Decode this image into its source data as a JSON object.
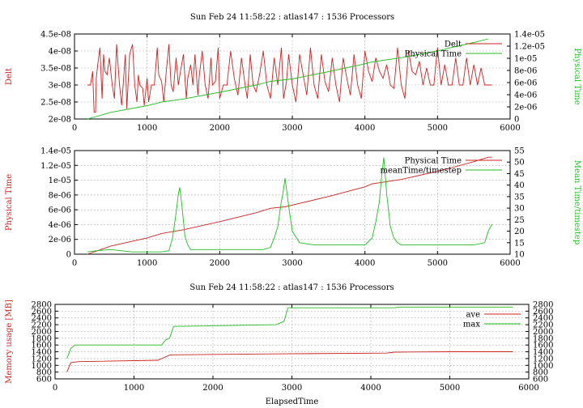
{
  "colors": {
    "red": "#cc2222",
    "green": "#22bb22"
  },
  "chart_data": [
    {
      "type": "line",
      "title": "Sun Feb 24 11:58:22 : atlas147 : 1536 Processors",
      "xlabel": "",
      "ylabel": "Delt",
      "y2label": "Physical Time",
      "xlim": [
        0,
        6000
      ],
      "ylim": [
        2e-08,
        4.5e-08
      ],
      "y2lim": [
        0,
        1.4e-05
      ],
      "xticks": [
        "0",
        "1000",
        "2000",
        "3000",
        "4000",
        "5000",
        "6000"
      ],
      "yticks": [
        "2e-08",
        "2.5e-08",
        "3e-08",
        "3.5e-08",
        "4e-08",
        "4.5e-08"
      ],
      "y2ticks": [
        "0",
        "2e-06",
        "4e-06",
        "6e-06",
        "8e-06",
        "1e-05",
        "1.2e-05",
        "1.4e-05"
      ],
      "legend_position": "top-right",
      "grid": true,
      "series": [
        {
          "name": "Delt",
          "axis": "y",
          "color": "#cc2222",
          "x": [
            180,
            220,
            250,
            270,
            290,
            300,
            320,
            350,
            380,
            400,
            420,
            450,
            480,
            520,
            550,
            580,
            620,
            650,
            700,
            720,
            760,
            800,
            830,
            860,
            880,
            900,
            940,
            960,
            1000,
            1020,
            1060,
            1100,
            1140,
            1160,
            1200,
            1230,
            1260,
            1300,
            1330,
            1360,
            1400,
            1430,
            1460,
            1500,
            1540,
            1560,
            1600,
            1630,
            1660,
            1700,
            1720,
            1760,
            1800,
            1840,
            1880,
            1900,
            1940,
            1980,
            2000,
            2050,
            2100,
            2150,
            2200,
            2250,
            2300,
            2350,
            2380,
            2420,
            2460,
            2500,
            2550,
            2600,
            2650,
            2700,
            2750,
            2800,
            2850,
            2880,
            2920,
            2950,
            3000,
            3050,
            3100,
            3150,
            3200,
            3250,
            3300,
            3350,
            3400,
            3450,
            3500,
            3550,
            3600,
            3650,
            3700,
            3750,
            3800,
            3850,
            3900,
            3950,
            4000,
            4050,
            4100,
            4150,
            4200,
            4250,
            4300,
            4350,
            4400,
            4450,
            4500,
            4550,
            4600,
            4650,
            4700,
            4750,
            4800,
            4850,
            4900,
            4950,
            5000,
            5050,
            5100,
            5150,
            5200,
            5250,
            5300,
            5350,
            5400,
            5450,
            5500,
            5550,
            5600,
            5650,
            5700,
            5750
          ],
          "y": [
            3e-08,
            3e-08,
            3.4e-08,
            2.2e-08,
            2.2e-08,
            3.2e-08,
            3.6e-08,
            4.1e-08,
            2.6e-08,
            3.9e-08,
            3.4e-08,
            3.3e-08,
            3.8e-08,
            3e-08,
            2.6e-08,
            4.2e-08,
            3e-08,
            2.4e-08,
            3.9e-08,
            2.3e-08,
            3.9e-08,
            4.2e-08,
            3e-08,
            2.5e-08,
            3.3e-08,
            3e-08,
            2.9e-08,
            2.4e-08,
            3.2e-08,
            2.5e-08,
            3e-08,
            3e-08,
            4.1e-08,
            3.3e-08,
            3.1e-08,
            2.5e-08,
            3.3e-08,
            4.2e-08,
            3e-08,
            2.8e-08,
            3.8e-08,
            3e-08,
            3.4e-08,
            3.9e-08,
            2.6e-08,
            3.2e-08,
            3.6e-08,
            3e-08,
            3.9e-08,
            2.7e-08,
            3.3e-08,
            4e-08,
            3e-08,
            2.6e-08,
            3.8e-08,
            3e-08,
            3.1e-08,
            4.1e-08,
            2.6e-08,
            3e-08,
            3e-08,
            4e-08,
            3.2e-08,
            2.7e-08,
            3.8e-08,
            3e-08,
            2.6e-08,
            3.9e-08,
            3e-08,
            2.8e-08,
            3.3e-08,
            4e-08,
            3e-08,
            2.6e-08,
            3.8e-08,
            3e-08,
            4.1e-08,
            2.6e-08,
            3.1e-08,
            3.9e-08,
            3e-08,
            2.5e-08,
            3.9e-08,
            3.3e-08,
            2.7e-08,
            4.1e-08,
            3e-08,
            2.6e-08,
            3.9e-08,
            3.1e-08,
            2.8e-08,
            3.8e-08,
            3e-08,
            2.5e-08,
            3.8e-08,
            3.2e-08,
            2.7e-08,
            3.9e-08,
            3e-08,
            2.6e-08,
            4e-08,
            3.4e-08,
            3.1e-08,
            3.8e-08,
            3.4e-08,
            3.2e-08,
            3.6e-08,
            3e-08,
            2.9e-08,
            4.1e-08,
            3e-08,
            2.6e-08,
            4e-08,
            3.4e-08,
            3.3e-08,
            3.7e-08,
            3e-08,
            3.5e-08,
            3e-08,
            3e-08,
            4.1e-08,
            3e-08,
            3.6e-08,
            3e-08,
            3e-08,
            3.8e-08,
            3e-08,
            3e-08,
            3.8e-08,
            3e-08,
            3.6e-08,
            3e-08,
            3.5e-08,
            3e-08,
            3e-08,
            3e-08
          ]
        },
        {
          "name": "Physical Time",
          "axis": "y2",
          "color": "#22bb22",
          "x": [
            180,
            500,
            1000,
            1200,
            1500,
            2000,
            2500,
            2700,
            3000,
            3500,
            4000,
            4100,
            4500,
            5000,
            5200,
            5500,
            5700
          ],
          "y": [
            0,
            1.1e-06,
            2.2e-06,
            2.8e-06,
            3.3e-06,
            4.4e-06,
            5.6e-06,
            6.2e-06,
            6.6e-06,
            7.8e-06,
            9.1e-06,
            9.4e-06,
            1.01e-05,
            1.12e-05,
            1.18e-05,
            1.26e-05,
            1.32e-05
          ]
        }
      ]
    },
    {
      "type": "line",
      "title": "",
      "xlabel": "",
      "ylabel": "Physical Time",
      "y2label": "Mean Time/timestep",
      "xlim": [
        0,
        6000
      ],
      "ylim": [
        0,
        1.4e-05
      ],
      "y2lim": [
        10,
        55
      ],
      "xticks": [
        "0",
        "1000",
        "2000",
        "3000",
        "4000",
        "5000",
        "6000"
      ],
      "yticks": [
        "0",
        "2e-06",
        "4e-06",
        "6e-06",
        "8e-06",
        "1e-05",
        "1.2e-05",
        "1.4e-05"
      ],
      "y2ticks": [
        "10",
        "15",
        "20",
        "25",
        "30",
        "35",
        "40",
        "45",
        "50",
        "55"
      ],
      "legend_position": "top-right",
      "grid": true,
      "series": [
        {
          "name": "Physical Time",
          "axis": "y",
          "color": "#cc2222",
          "x": [
            180,
            500,
            1000,
            1200,
            1500,
            2000,
            2500,
            2700,
            2900,
            3500,
            4000,
            4100,
            4500,
            5000,
            5200,
            5500,
            5700,
            5750
          ],
          "y": [
            0,
            1.1e-06,
            2.2e-06,
            2.8e-06,
            3.3e-06,
            4.4e-06,
            5.6e-06,
            6.2e-06,
            6.4e-06,
            7.8e-06,
            9.1e-06,
            9.5e-06,
            1.01e-05,
            1.12e-05,
            1.17e-05,
            1.25e-05,
            1.31e-05,
            1.31e-05
          ]
        },
        {
          "name": "meanTime/timestep",
          "axis": "y2",
          "color": "#22bb22",
          "x": [
            180,
            300,
            500,
            800,
            1000,
            1200,
            1300,
            1350,
            1400,
            1430,
            1450,
            1480,
            1520,
            1560,
            1600,
            1700,
            2000,
            2300,
            2600,
            2700,
            2750,
            2800,
            2850,
            2870,
            2900,
            2950,
            3000,
            3100,
            3300,
            3600,
            3900,
            4000,
            4100,
            4150,
            4200,
            4230,
            4260,
            4300,
            4350,
            4400,
            4450,
            4500,
            4700,
            5000,
            5200,
            5400,
            5500,
            5650,
            5700,
            5750
          ],
          "y": [
            11,
            11.5,
            12,
            11,
            11,
            11,
            11.5,
            17,
            28,
            36,
            39,
            31,
            18,
            14,
            12,
            12,
            12,
            12,
            12,
            13,
            17,
            22,
            33,
            36,
            43,
            31,
            20,
            15,
            14,
            14,
            14,
            14,
            17,
            24,
            33,
            44,
            52,
            36,
            22,
            17,
            15,
            14,
            14,
            14,
            14,
            14,
            14,
            15,
            20,
            23
          ]
        }
      ]
    },
    {
      "type": "line",
      "title": "Sun Feb 24 11:58:22 : atlas147 : 1536 Processors",
      "xlabel": "ElapsedTime",
      "ylabel": "Memory usage [MB]",
      "y2label": "",
      "xlim": [
        0,
        6000
      ],
      "ylim": [
        600,
        2800
      ],
      "y2lim": [
        600,
        2800
      ],
      "xticks": [
        "0",
        "1000",
        "2000",
        "3000",
        "4000",
        "5000",
        "6000"
      ],
      "yticks": [
        "600",
        "800",
        "1000",
        "1200",
        "1400",
        "1600",
        "1800",
        "2000",
        "2200",
        "2400",
        "2600",
        "2800"
      ],
      "y2ticks": [
        "600",
        "800",
        "1000",
        "1200",
        "1400",
        "1600",
        "1800",
        "2000",
        "2200",
        "2400",
        "2600",
        "2800"
      ],
      "legend_position": "top-right",
      "grid": true,
      "series": [
        {
          "name": "ave",
          "axis": "y",
          "color": "#cc2222",
          "x": [
            150,
            200,
            300,
            1300,
            1450,
            1500,
            2900,
            4200,
            4300,
            5000,
            5800
          ],
          "y": [
            800,
            1080,
            1110,
            1150,
            1300,
            1310,
            1340,
            1360,
            1390,
            1400,
            1400
          ]
        },
        {
          "name": "max",
          "axis": "y",
          "color": "#22bb22",
          "x": [
            150,
            200,
            250,
            1350,
            1400,
            1450,
            1500,
            2800,
            2900,
            2950,
            4300,
            4350,
            5800
          ],
          "y": [
            1200,
            1500,
            1600,
            1600,
            1750,
            1800,
            2150,
            2200,
            2300,
            2700,
            2700,
            2720,
            2720
          ]
        }
      ]
    }
  ]
}
